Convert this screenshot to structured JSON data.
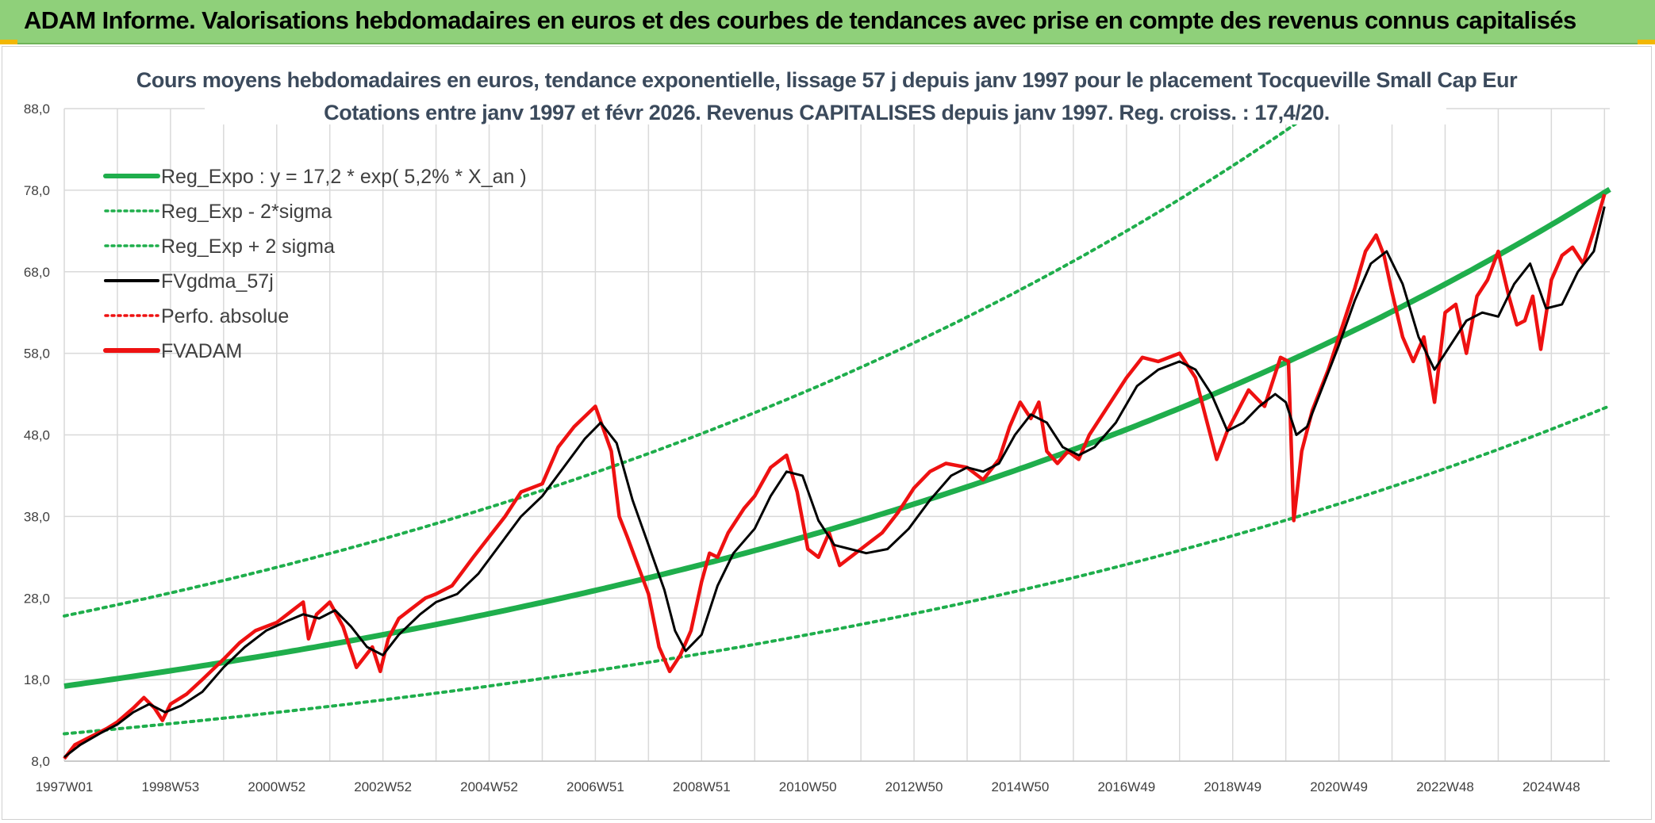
{
  "header": {
    "title": "ADAM Informe. Valorisations hebdomadaires en euros et des courbes de tendances avec prise en compte des revenus connus capitalisés"
  },
  "colors": {
    "header_bg": "#8fd07a",
    "trend": "#1fae4c",
    "actual": "#ee1111",
    "smooth": "#000000",
    "grid": "#d9d9d9"
  },
  "chart_data": {
    "type": "line",
    "title_line1": "Cours moyens hebdomadaires en euros, tendance exponentielle, lissage 57 j depuis janv 1997 pour le placement Tocqueville Small Cap Eur",
    "title_line2": "Cotations entre janv 1997 et févr 2026. Revenus CAPITALISES depuis janv 1997. Reg. croiss. : 17,4/20.",
    "xlabel": "",
    "ylabel": "",
    "xlim": [
      1997.0,
      2026.1
    ],
    "ylim": [
      8,
      88
    ],
    "grid": true,
    "legend_position": "top-left",
    "y_ticks": [
      "8,0",
      "18,0",
      "28,0",
      "38,0",
      "48,0",
      "58,0",
      "68,0",
      "78,0",
      "88,0"
    ],
    "y_tick_values": [
      8,
      18,
      28,
      38,
      48,
      58,
      68,
      78,
      88
    ],
    "x_ticks": [
      "1997W01",
      "1998W53",
      "2000W52",
      "2002W52",
      "2004W52",
      "2006W51",
      "2008W51",
      "2010W50",
      "2012W50",
      "2014W50",
      "2016W49",
      "2018W49",
      "2020W49",
      "2022W48",
      "2024W48"
    ],
    "x_tick_values": [
      1997.0,
      1999.0,
      2001.0,
      2003.0,
      2005.0,
      2007.0,
      2009.0,
      2011.0,
      2013.0,
      2015.0,
      2017.0,
      2019.0,
      2021.0,
      2023.0,
      2025.0
    ],
    "legend": [
      {
        "label": "Reg_Expo : y = 17,2 * exp( 5,2% *  X_an )",
        "style": "solid-thick",
        "color": "#1fae4c"
      },
      {
        "label": "Reg_Exp - 2*sigma",
        "style": "dotted",
        "color": "#1fae4c"
      },
      {
        "label": "Reg_Exp + 2 sigma",
        "style": "dotted",
        "color": "#1fae4c"
      },
      {
        "label": "FVgdma_57j",
        "style": "solid",
        "color": "#000000"
      },
      {
        "label": "Perfo. absolue",
        "style": "dotted",
        "color": "#ee1111"
      },
      {
        "label": "FVADAM",
        "style": "solid-thick",
        "color": "#ee1111"
      }
    ],
    "regression": {
      "a": 17.2,
      "rate": 0.052,
      "start_year": 1997.0,
      "lower_factor": 0.66,
      "upper_factor": 1.5
    },
    "series": [
      {
        "name": "FVADAM",
        "x": [
          1997.0,
          1997.2,
          1997.5,
          1997.8,
          1998.0,
          1998.3,
          1998.5,
          1998.7,
          1998.85,
          1999.0,
          1999.3,
          1999.6,
          2000.0,
          2000.3,
          2000.6,
          2001.0,
          2001.3,
          2001.5,
          2001.6,
          2001.75,
          2002.0,
          2002.25,
          2002.5,
          2002.8,
          2002.95,
          2003.1,
          2003.3,
          2003.5,
          2003.8,
          2004.0,
          2004.3,
          2004.7,
          2005.0,
          2005.3,
          2005.6,
          2006.0,
          2006.3,
          2006.6,
          2007.0,
          2007.3,
          2007.45,
          2007.6,
          2007.8,
          2008.0,
          2008.2,
          2008.4,
          2008.6,
          2008.8,
          2009.0,
          2009.15,
          2009.3,
          2009.5,
          2009.8,
          2010.0,
          2010.3,
          2010.6,
          2010.8,
          2011.0,
          2011.2,
          2011.4,
          2011.6,
          2011.8,
          2012.0,
          2012.2,
          2012.4,
          2012.7,
          2013.0,
          2013.3,
          2013.6,
          2014.0,
          2014.3,
          2014.6,
          2014.8,
          2015.0,
          2015.2,
          2015.35,
          2015.5,
          2015.7,
          2015.9,
          2016.1,
          2016.3,
          2016.6,
          2017.0,
          2017.3,
          2017.6,
          2018.0,
          2018.3,
          2018.5,
          2018.7,
          2018.9,
          2019.1,
          2019.3,
          2019.6,
          2019.9,
          2020.05,
          2020.15,
          2020.3,
          2020.5,
          2020.8,
          2021.0,
          2021.3,
          2021.5,
          2021.7,
          2021.85,
          2022.0,
          2022.2,
          2022.4,
          2022.6,
          2022.8,
          2023.0,
          2023.2,
          2023.4,
          2023.6,
          2023.8,
          2024.0,
          2024.2,
          2024.35,
          2024.5,
          2024.65,
          2024.8,
          2025.0,
          2025.2,
          2025.4,
          2025.6,
          2025.8,
          2026.0
        ],
        "values": [
          8.3,
          10.0,
          11.0,
          12.0,
          12.8,
          14.5,
          15.8,
          14.5,
          13.0,
          15.0,
          16.2,
          18.0,
          20.5,
          22.5,
          24.0,
          25.0,
          26.5,
          27.5,
          23.0,
          26.0,
          27.5,
          24.5,
          19.5,
          22.0,
          19.0,
          23.0,
          25.5,
          26.5,
          28.0,
          28.5,
          29.5,
          33.0,
          35.5,
          38.0,
          41.0,
          42.0,
          46.5,
          49.0,
          51.5,
          46.0,
          38.0,
          35.5,
          32.0,
          28.5,
          22.0,
          19.0,
          21.0,
          24.0,
          30.0,
          33.5,
          33.0,
          36.0,
          39.0,
          40.5,
          44.0,
          45.5,
          41.0,
          34.0,
          33.0,
          36.0,
          32.0,
          33.0,
          34.0,
          35.0,
          36.0,
          38.5,
          41.5,
          43.5,
          44.5,
          44.0,
          42.5,
          45.0,
          49.0,
          52.0,
          50.0,
          52.0,
          46.0,
          44.5,
          46.0,
          45.0,
          48.0,
          51.0,
          55.0,
          57.5,
          57.0,
          58.0,
          55.0,
          50.0,
          45.0,
          48.5,
          51.0,
          53.5,
          51.5,
          57.5,
          57.0,
          37.5,
          46.0,
          51.0,
          56.0,
          60.0,
          66.0,
          70.5,
          72.5,
          70.0,
          65.5,
          60.0,
          57.0,
          60.0,
          52.0,
          63.0,
          64.0,
          58.0,
          65.0,
          67.0,
          70.5,
          65.0,
          61.5,
          62.0,
          65.0,
          58.5,
          67.0,
          70.0,
          71.0,
          69.0,
          73.0,
          77.5
        ]
      },
      {
        "name": "FVgdma_57j",
        "x": [
          1997.0,
          1997.3,
          1997.7,
          1998.0,
          1998.3,
          1998.6,
          1998.9,
          1999.2,
          1999.6,
          2000.0,
          2000.4,
          2000.8,
          2001.2,
          2001.5,
          2001.8,
          2002.1,
          2002.4,
          2002.7,
          2003.0,
          2003.3,
          2003.7,
          2004.0,
          2004.4,
          2004.8,
          2005.2,
          2005.6,
          2006.0,
          2006.4,
          2006.8,
          2007.1,
          2007.4,
          2007.7,
          2008.0,
          2008.3,
          2008.5,
          2008.7,
          2009.0,
          2009.3,
          2009.6,
          2010.0,
          2010.3,
          2010.6,
          2010.9,
          2011.2,
          2011.5,
          2011.8,
          2012.1,
          2012.5,
          2012.9,
          2013.3,
          2013.7,
          2014.0,
          2014.3,
          2014.6,
          2014.9,
          2015.2,
          2015.5,
          2015.8,
          2016.1,
          2016.4,
          2016.8,
          2017.2,
          2017.6,
          2018.0,
          2018.3,
          2018.6,
          2018.9,
          2019.2,
          2019.5,
          2019.8,
          2020.0,
          2020.2,
          2020.4,
          2020.7,
          2021.0,
          2021.3,
          2021.6,
          2021.9,
          2022.2,
          2022.5,
          2022.8,
          2023.1,
          2023.4,
          2023.7,
          2024.0,
          2024.3,
          2024.6,
          2024.9,
          2025.2,
          2025.5,
          2025.8,
          2026.0
        ],
        "values": [
          8.5,
          10.0,
          11.5,
          12.5,
          14.0,
          15.0,
          14.0,
          14.8,
          16.5,
          19.5,
          22.0,
          24.0,
          25.2,
          26.0,
          25.5,
          26.5,
          24.5,
          22.0,
          21.0,
          23.5,
          26.0,
          27.5,
          28.5,
          31.0,
          34.5,
          38.0,
          40.5,
          44.0,
          47.5,
          49.5,
          47.0,
          40.0,
          34.5,
          29.0,
          24.0,
          21.5,
          23.5,
          29.5,
          33.5,
          36.5,
          40.5,
          43.5,
          43.0,
          37.5,
          34.5,
          34.0,
          33.5,
          34.0,
          36.5,
          40.0,
          43.0,
          44.0,
          43.5,
          44.5,
          48.0,
          50.5,
          49.5,
          46.5,
          45.5,
          46.5,
          49.5,
          54.0,
          56.0,
          57.0,
          56.0,
          53.0,
          48.5,
          49.5,
          51.5,
          53.0,
          52.0,
          48.0,
          49.0,
          54.0,
          59.0,
          64.5,
          69.0,
          70.5,
          66.5,
          60.0,
          56.0,
          59.0,
          62.0,
          63.0,
          62.5,
          66.5,
          69.0,
          63.5,
          64.0,
          68.0,
          70.5,
          76.0
        ]
      }
    ]
  }
}
